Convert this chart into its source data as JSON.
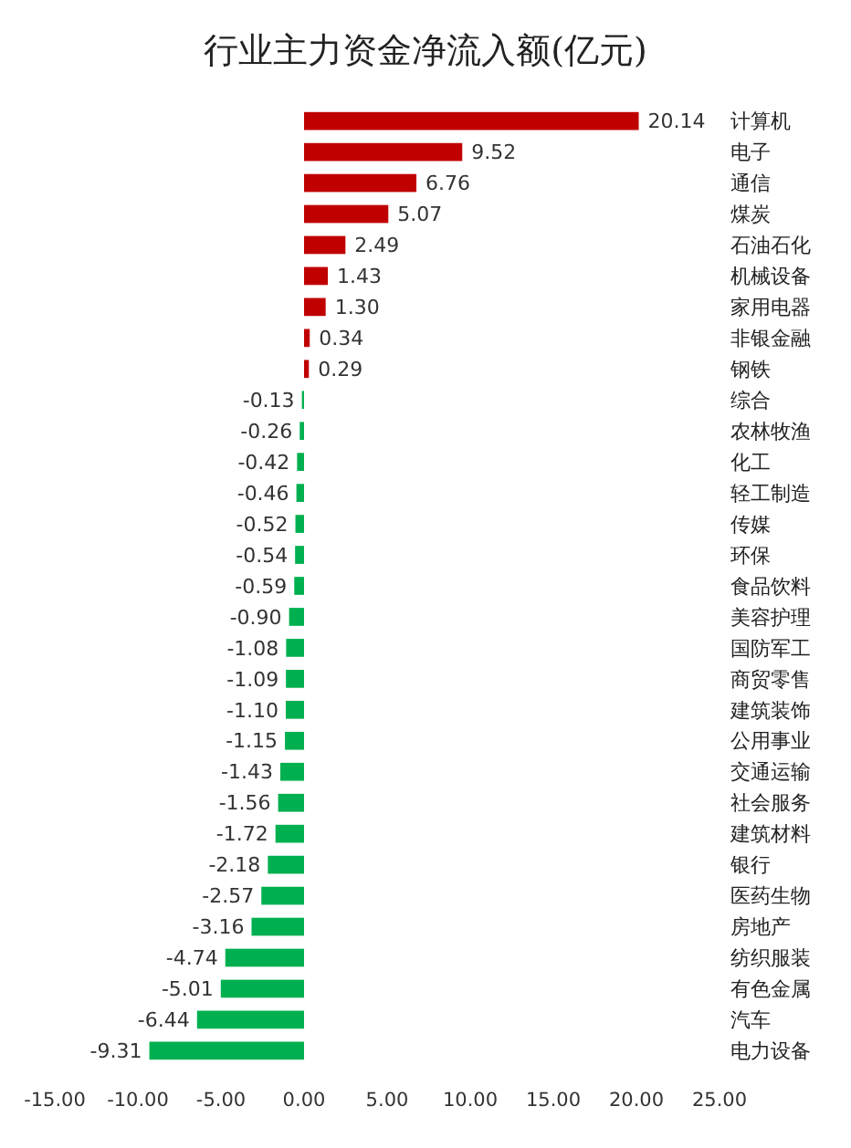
{
  "chart_data": {
    "type": "bar",
    "orientation": "horizontal",
    "title": "行业主力资金净流入额(亿元)",
    "categories": [
      "计算机",
      "电子",
      "通信",
      "煤炭",
      "石油石化",
      "机械设备",
      "家用电器",
      "非银金融",
      "钢铁",
      "综合",
      "农林牧渔",
      "化工",
      "轻工制造",
      "传媒",
      "环保",
      "食品饮料",
      "美容护理",
      "国防军工",
      "商贸零售",
      "建筑装饰",
      "公用事业",
      "交通运输",
      "社会服务",
      "建筑材料",
      "银行",
      "医药生物",
      "房地产",
      "纺织服装",
      "有色金属",
      "汽车",
      "电力设备"
    ],
    "values": [
      20.14,
      9.52,
      6.76,
      5.07,
      2.49,
      1.43,
      1.3,
      0.34,
      0.29,
      -0.13,
      -0.26,
      -0.42,
      -0.46,
      -0.52,
      -0.54,
      -0.59,
      -0.9,
      -1.08,
      -1.09,
      -1.1,
      -1.15,
      -1.43,
      -1.56,
      -1.72,
      -2.18,
      -2.57,
      -3.16,
      -4.74,
      -5.01,
      -6.44,
      -9.31
    ],
    "value_labels": [
      "20.14",
      "9.52",
      "6.76",
      "5.07",
      "2.49",
      "1.43",
      "1.30",
      "0.34",
      "0.29",
      "-0.13",
      "-0.26",
      "-0.42",
      "-0.46",
      "-0.52",
      "-0.54",
      "-0.59",
      "-0.90",
      "-1.08",
      "-1.09",
      "-1.10",
      "-1.15",
      "-1.43",
      "-1.56",
      "-1.72",
      "-2.18",
      "-2.57",
      "-3.16",
      "-4.74",
      "-5.01",
      "-6.44",
      "-9.31"
    ],
    "colors": [
      "#c00000",
      "#c00000",
      "#c00000",
      "#c00000",
      "#c00000",
      "#c00000",
      "#c00000",
      "#c00000",
      "#c00000",
      "#00b050",
      "#00b050",
      "#00b050",
      "#00b050",
      "#00b050",
      "#00b050",
      "#00b050",
      "#00b050",
      "#00b050",
      "#00b050",
      "#00b050",
      "#00b050",
      "#00b050",
      "#00b050",
      "#00b050",
      "#00b050",
      "#00b050",
      "#00b050",
      "#00b050",
      "#00b050",
      "#00b050",
      "#00b050"
    ],
    "xlim": [
      -15,
      25
    ],
    "xticks": [
      {
        "value": -15,
        "label": "-15.00"
      },
      {
        "value": -10,
        "label": "-10.00"
      },
      {
        "value": -5,
        "label": "-5.00"
      },
      {
        "value": 0,
        "label": "0.00"
      },
      {
        "value": 5,
        "label": "5.00"
      },
      {
        "value": 10,
        "label": "10.00"
      },
      {
        "value": 15,
        "label": "15.00"
      },
      {
        "value": 20,
        "label": "20.00"
      },
      {
        "value": 25,
        "label": "25.00"
      }
    ],
    "grid": false
  }
}
